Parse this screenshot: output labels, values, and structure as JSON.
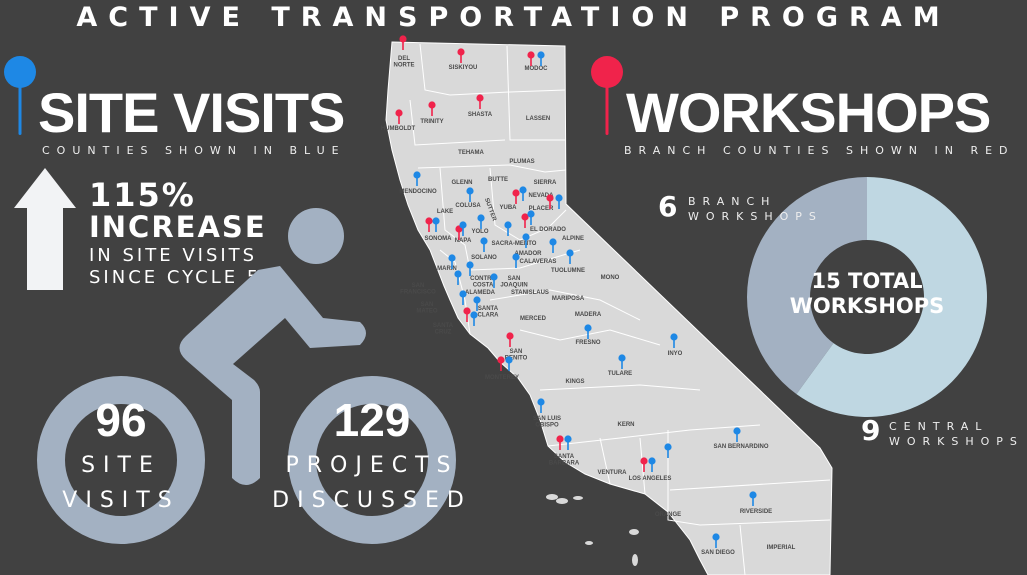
{
  "title": "ACTIVE TRANSPORTATION PROGRAM",
  "colors": {
    "background": "#414141",
    "site_visit_pin": "#1e88e5",
    "workshop_pin": "#f0234b",
    "bike": "#a3b1c2",
    "map": "#d9d9d9",
    "branch_slice": "#a3b1c2",
    "central_slice": "#bfd7e2"
  },
  "site_visits": {
    "heading": "SITE VISITS",
    "subheading": "COUNTIES SHOWN IN BLUE",
    "increase_value": "115%",
    "increase_label": "INCREASE",
    "increase_line1": "IN SITE VISITS",
    "increase_line2": "SINCE CYCLE 5",
    "icon": "arrow-up-icon",
    "visits_count": "96",
    "visits_line1": "SITE",
    "visits_line2": "VISITS",
    "projects_count": "129",
    "projects_line1": "PROJECTS",
    "projects_line2": "DISCUSSED"
  },
  "workshops": {
    "heading": "WORKSHOPS",
    "subheading": "BRANCH COUNTIES SHOWN IN RED",
    "branch_count": "6",
    "branch_line1": "BRANCH",
    "branch_line2": "WORKSHOPS",
    "central_count": "9",
    "central_line1": "CENTRAL",
    "central_line2": "WORKSHOPS",
    "total_line1": "15 TOTAL",
    "total_line2": "WORKSHOPS"
  },
  "chart_data": {
    "type": "pie",
    "categories": [
      "BRANCH WORKSHOPS",
      "CENTRAL WORKSHOPS"
    ],
    "values": [
      6,
      9
    ],
    "colors": [
      "#a3b1c2",
      "#bfd7e2"
    ],
    "center_label": "15 TOTAL WORKSHOPS"
  },
  "map": {
    "counties": [
      "DEL NORTE",
      "SISKIYOU",
      "MODOC",
      "HUMBOLDT",
      "TRINITY",
      "SHASTA",
      "LASSEN",
      "TEHAMA",
      "PLUMAS",
      "GLENN",
      "BUTTE",
      "SIERRA",
      "MENDOCINO",
      "COLUSA",
      "SUTTER",
      "YUBA",
      "NEVADA",
      "PLACER",
      "LAKE",
      "SONOMA",
      "NAPA",
      "YOLO",
      "EL DORADO",
      "SACRA-MENTO",
      "ALPINE",
      "SOLANO",
      "AMADOR",
      "MARIN",
      "CALAVERAS",
      "TUOLUMNE",
      "CONTRA COSTA",
      "SAN JOAQUIN",
      "MONO",
      "SAN FRANCISCO",
      "ALAMEDA",
      "STANISLAUS",
      "MARIPOSA",
      "SAN MATEO",
      "SANTA CLARA",
      "MADERA",
      "MERCED",
      "SANTA CRUZ",
      "FRESNO",
      "INYO",
      "SAN BENITO",
      "MONTEREY",
      "TULARE",
      "KINGS",
      "SAN LUIS OBISPO",
      "KERN",
      "SAN BERNARDINO",
      "SANTA BARBARA",
      "VENTURA",
      "LOS ANGELES",
      "ORANGE",
      "RIVERSIDE",
      "SAN DIEGO",
      "IMPERIAL"
    ],
    "pins": [
      "red",
      "red",
      "red",
      "blue",
      "red",
      "red",
      "red",
      "blue",
      "blue",
      "red",
      "blue",
      "red",
      "blue",
      "red",
      "blue",
      "red",
      "blue",
      "red",
      "blue",
      "blue",
      "blue",
      "blue",
      "blue",
      "blue",
      "blue",
      "blue",
      "blue",
      "blue",
      "blue",
      "blue",
      "blue",
      "blue",
      "red",
      "blue",
      "red",
      "blue",
      "blue",
      "blue",
      "red",
      "blue",
      "blue",
      "red",
      "blue",
      "red",
      "blue",
      "blue",
      "blue",
      "blue",
      "blue"
    ]
  }
}
